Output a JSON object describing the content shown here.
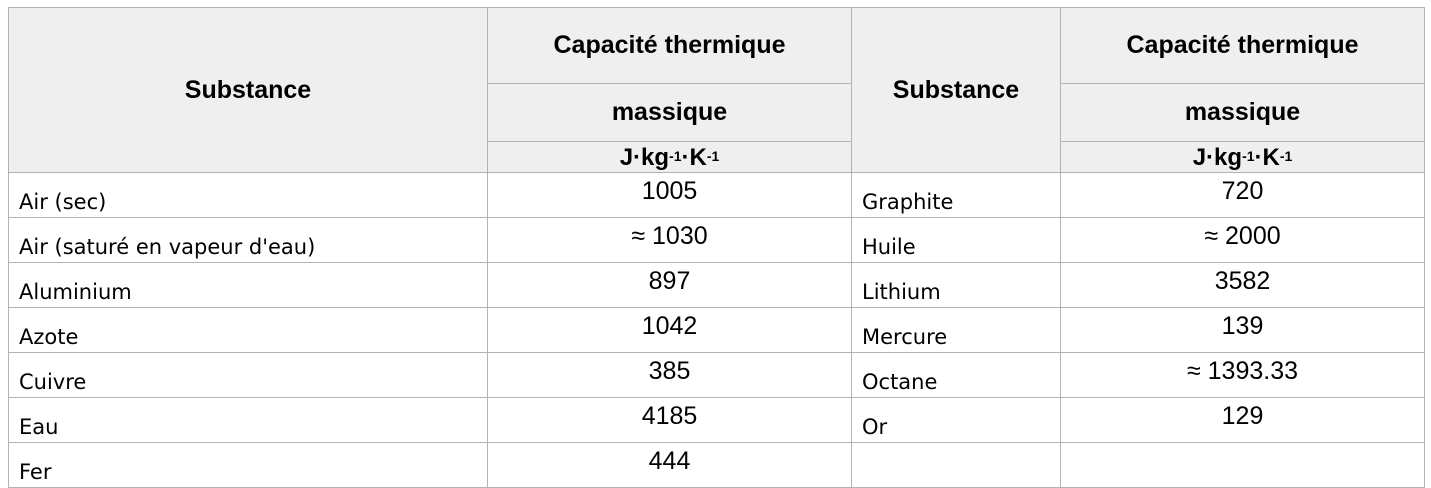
{
  "header": {
    "substance": "Substance",
    "capacity_line1": "Capacité thermique",
    "capacity_line2": "massique",
    "unit": {
      "j": "J·kg",
      "kg_exp": "-1",
      "k": "·K",
      "k_exp": "-1"
    }
  },
  "left_rows": [
    {
      "substance": "Air (sec)",
      "value": "1005"
    },
    {
      "substance": "Air (saturé en vapeur d'eau)",
      "value": "≈ 1030"
    },
    {
      "substance": "Aluminium",
      "value": "897"
    },
    {
      "substance": "Azote",
      "value": "1042"
    },
    {
      "substance": "Cuivre",
      "value": "385"
    },
    {
      "substance": "Eau",
      "value": "4185"
    },
    {
      "substance": "Fer",
      "value": "444"
    }
  ],
  "right_rows": [
    {
      "substance": "Graphite",
      "value": "720"
    },
    {
      "substance": "Huile",
      "value": "≈ 2000"
    },
    {
      "substance": "Lithium",
      "value": "3582"
    },
    {
      "substance": "Mercure",
      "value": "139"
    },
    {
      "substance": "Octane",
      "value": "≈ 1393.33"
    },
    {
      "substance": "Or",
      "value": "129"
    },
    {
      "substance": "",
      "value": ""
    }
  ],
  "colors": {
    "header_bg": "#efefef",
    "border": "#b3b3b3"
  }
}
